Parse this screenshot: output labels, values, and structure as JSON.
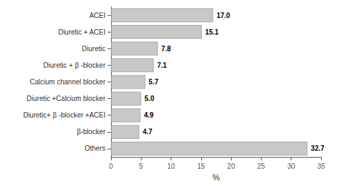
{
  "chart_data": {
    "type": "bar",
    "orientation": "horizontal",
    "categories": [
      "Others",
      "β-blocker",
      "Diuretic+ β -blocker +ACEI",
      "Diuretic +Calcium blocker",
      "Calcium channel blocker",
      "Diuretic + β -blocker",
      "Diuretic",
      "Diuretic + ACEI",
      "ACEI"
    ],
    "values": [
      32.7,
      4.7,
      4.9,
      5.0,
      5.7,
      7.1,
      7.8,
      15.1,
      17.0
    ],
    "value_labels": [
      "32.7",
      "4.7",
      "4.9",
      "5.0",
      "5.7",
      "7.1",
      "7.8",
      "15.1",
      "17.0"
    ],
    "data_labels": true,
    "color": "#c8c8c8",
    "xlabel": "%",
    "xlim": [
      0,
      35
    ],
    "xticks": [
      0,
      5,
      10,
      15,
      20,
      25,
      30,
      35
    ],
    "grid": false
  }
}
